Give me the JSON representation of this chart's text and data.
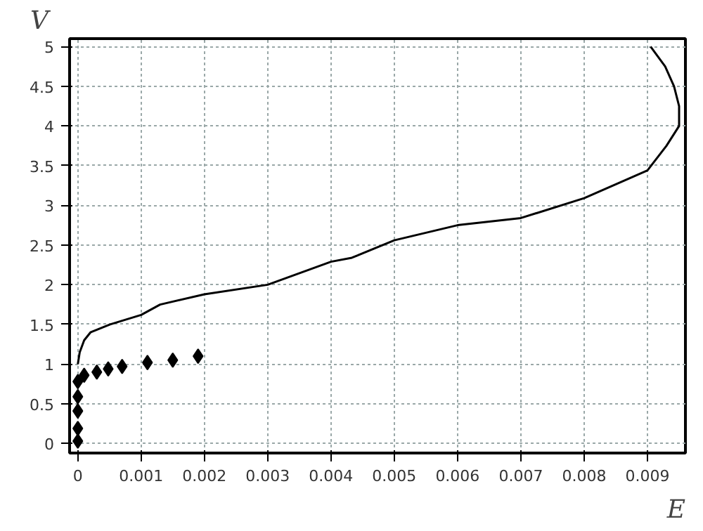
{
  "chart_data": {
    "type": "line",
    "xlabel": "E",
    "ylabel": "V",
    "xlim": [
      -0.00013,
      0.0096
    ],
    "ylim": [
      -0.12,
      5.1
    ],
    "xticks": [
      0,
      0.001,
      0.002,
      0.003,
      0.004,
      0.005,
      0.006,
      0.007,
      0.008,
      0.009
    ],
    "yticks": [
      0,
      0.5,
      1,
      1.5,
      2,
      2.5,
      3,
      3.5,
      4,
      4.5,
      5
    ],
    "grid": true,
    "series": [
      {
        "color": "#000000",
        "marker": "none",
        "line_style": "solid",
        "x": [
          0,
          3e-05,
          0.0001,
          0.0002,
          0.00051,
          0.001,
          0.0013,
          0.002,
          0.003,
          0.004,
          0.00433,
          0.005,
          0.006,
          0.007,
          0.008,
          0.009,
          0.0093,
          0.0095,
          0.0095,
          0.00942,
          0.00928,
          0.00905
        ],
        "values": [
          1.0,
          1.15,
          1.3,
          1.4,
          1.5,
          1.62,
          1.75,
          1.88,
          2.0,
          2.29,
          2.34,
          2.56,
          2.75,
          2.84,
          3.09,
          3.44,
          3.75,
          4.0,
          4.25,
          4.5,
          4.75,
          5.0
        ]
      },
      {
        "type": "scatter",
        "color": "#000000",
        "marker": "diamond",
        "x": [
          0,
          0,
          0,
          0,
          0,
          0.0001,
          0.0003,
          0.00048,
          0.0007,
          0.0011,
          0.0015,
          0.0019
        ],
        "values": [
          0.03,
          0.19,
          0.41,
          0.59,
          0.78,
          0.86,
          0.9,
          0.94,
          0.97,
          1.02,
          1.05,
          1.1
        ]
      }
    ]
  }
}
